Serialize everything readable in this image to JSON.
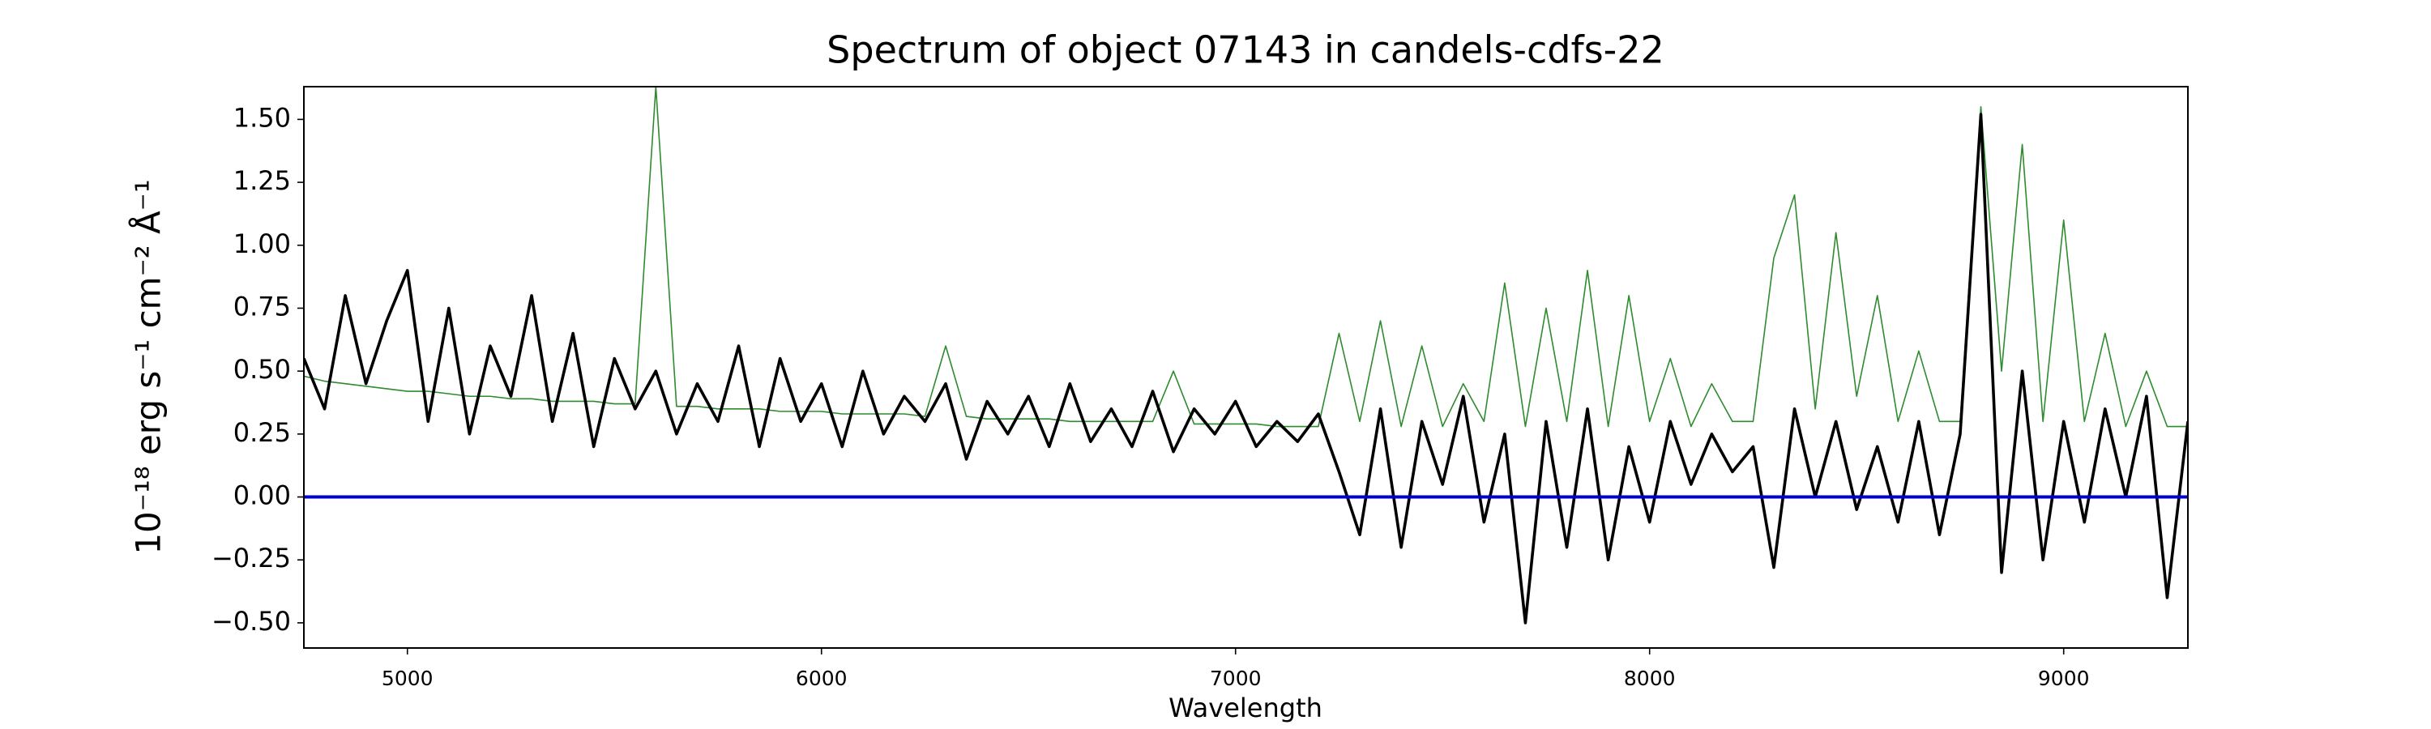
{
  "chart_data": {
    "type": "line",
    "title": "Spectrum of object 07143 in candels-cdfs-22",
    "x_label": "Wavelength",
    "y_label": "10⁻¹⁸ erg s⁻¹ cm⁻² Å⁻¹",
    "x": [
      4750,
      4800,
      4850,
      4900,
      4950,
      5000,
      5050,
      5100,
      5150,
      5200,
      5250,
      5300,
      5350,
      5400,
      5450,
      5500,
      5550,
      5600,
      5650,
      5700,
      5750,
      5800,
      5850,
      5900,
      5950,
      6000,
      6050,
      6100,
      6150,
      6200,
      6250,
      6300,
      6350,
      6400,
      6450,
      6500,
      6550,
      6600,
      6650,
      6700,
      6750,
      6800,
      6850,
      6900,
      6950,
      7000,
      7050,
      7100,
      7150,
      7200,
      7250,
      7300,
      7350,
      7400,
      7450,
      7500,
      7550,
      7600,
      7650,
      7700,
      7750,
      7800,
      7850,
      7900,
      7950,
      8000,
      8050,
      8100,
      8150,
      8200,
      8250,
      8300,
      8350,
      8400,
      8450,
      8500,
      8550,
      8600,
      8650,
      8700,
      8750,
      8800,
      8850,
      8900,
      8950,
      9000,
      9050,
      9100,
      9150,
      9200,
      9250,
      9300
    ],
    "series": [
      {
        "color": "#2e8b2e",
        "width": 1.6,
        "values": [
          0.48,
          0.46,
          0.45,
          0.44,
          0.43,
          0.42,
          0.42,
          0.41,
          0.4,
          0.4,
          0.39,
          0.39,
          0.38,
          0.38,
          0.38,
          0.37,
          0.37,
          1.63,
          0.36,
          0.36,
          0.35,
          0.35,
          0.35,
          0.34,
          0.34,
          0.34,
          0.33,
          0.33,
          0.33,
          0.33,
          0.32,
          0.6,
          0.32,
          0.31,
          0.31,
          0.31,
          0.31,
          0.3,
          0.3,
          0.3,
          0.3,
          0.3,
          0.5,
          0.29,
          0.29,
          0.29,
          0.29,
          0.28,
          0.28,
          0.28,
          0.65,
          0.3,
          0.7,
          0.28,
          0.6,
          0.28,
          0.45,
          0.3,
          0.85,
          0.28,
          0.75,
          0.3,
          0.9,
          0.28,
          0.8,
          0.3,
          0.55,
          0.28,
          0.45,
          0.3,
          0.3,
          0.95,
          1.2,
          0.35,
          1.05,
          0.4,
          0.8,
          0.3,
          0.58,
          0.3,
          0.3,
          1.55,
          0.5,
          1.4,
          0.3,
          1.1,
          0.3,
          0.65,
          0.28,
          0.5,
          0.28,
          0.28
        ]
      },
      {
        "color": "#000000",
        "width": 3.6,
        "values": [
          0.55,
          0.35,
          0.8,
          0.45,
          0.7,
          0.9,
          0.3,
          0.75,
          0.25,
          0.6,
          0.4,
          0.8,
          0.3,
          0.65,
          0.2,
          0.55,
          0.35,
          0.5,
          0.25,
          0.45,
          0.3,
          0.6,
          0.2,
          0.55,
          0.3,
          0.45,
          0.2,
          0.5,
          0.25,
          0.4,
          0.3,
          0.45,
          0.15,
          0.38,
          0.25,
          0.4,
          0.2,
          0.45,
          0.22,
          0.35,
          0.2,
          0.42,
          0.18,
          0.35,
          0.25,
          0.38,
          0.2,
          0.3,
          0.22,
          0.33,
          0.1,
          -0.15,
          0.35,
          -0.2,
          0.3,
          0.05,
          0.4,
          -0.1,
          0.25,
          -0.5,
          0.3,
          -0.2,
          0.35,
          -0.25,
          0.2,
          -0.1,
          0.3,
          0.05,
          0.25,
          0.1,
          0.2,
          -0.28,
          0.35,
          0.0,
          0.3,
          -0.05,
          0.2,
          -0.1,
          0.3,
          -0.15,
          0.25,
          1.52,
          -0.3,
          0.5,
          -0.25,
          0.3,
          -0.1,
          0.35,
          0.0,
          0.4,
          -0.4,
          0.3
        ]
      }
    ],
    "reference_line": {
      "value": 0,
      "color": "#0000cc"
    },
    "xlim": [
      4750,
      9300
    ],
    "ylim": [
      -0.6,
      1.63
    ],
    "xticks": [
      5000,
      6000,
      7000,
      8000,
      9000
    ],
    "yticks": [
      {
        "value": -0.5,
        "label": "−0.50"
      },
      {
        "value": -0.25,
        "label": "−0.25"
      },
      {
        "value": 0,
        "label": "0.00"
      },
      {
        "value": 0.25,
        "label": "0.25"
      },
      {
        "value": 0.5,
        "label": "0.50"
      },
      {
        "value": 0.75,
        "label": "0.75"
      },
      {
        "value": 1.0,
        "label": "1.00"
      },
      {
        "value": 1.25,
        "label": "1.25"
      },
      {
        "value": 1.5,
        "label": "1.50"
      }
    ]
  }
}
